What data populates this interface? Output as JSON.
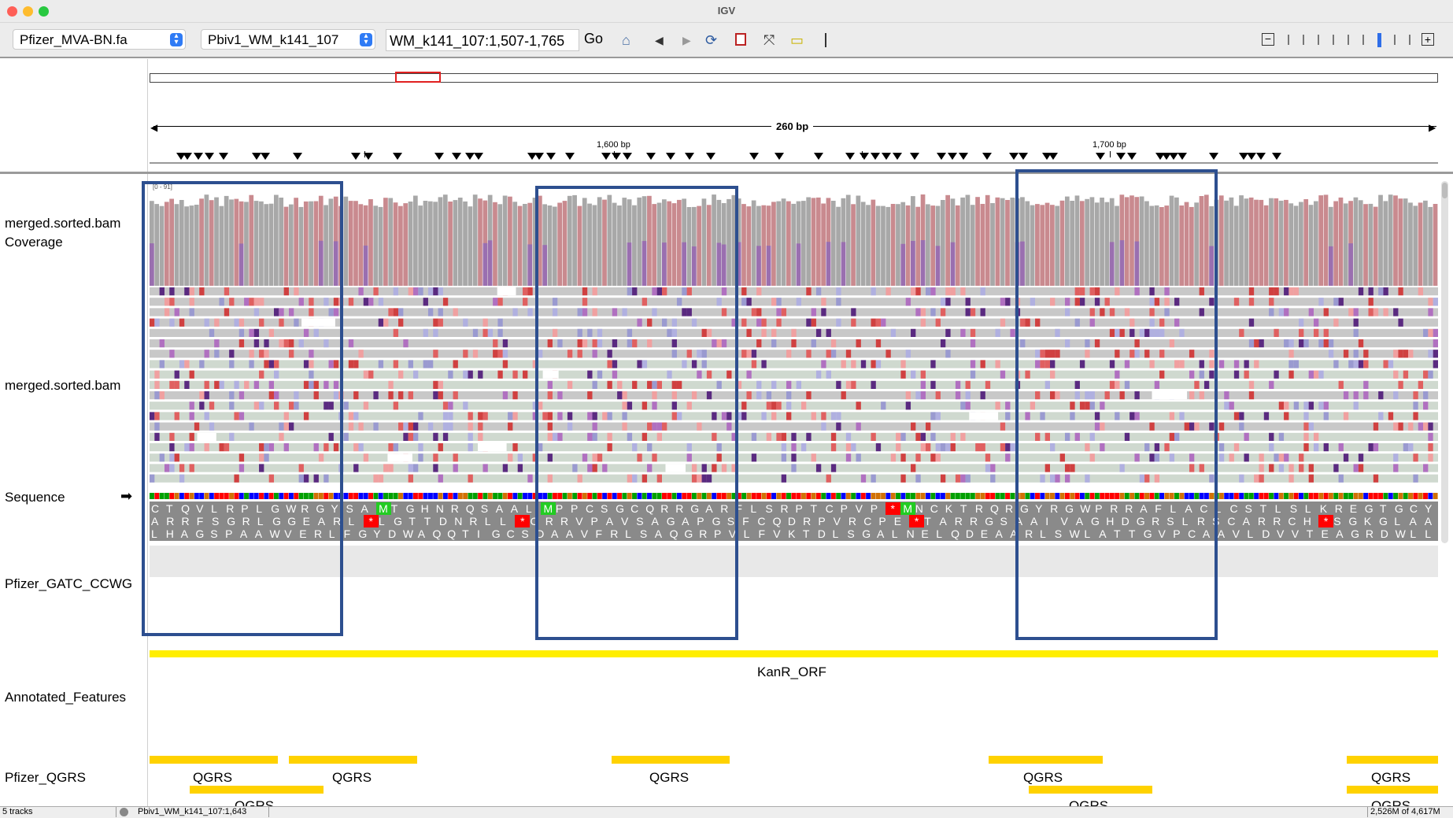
{
  "window": {
    "title": "IGV"
  },
  "toolbar": {
    "genome": "Pfizer_MVA-BN.fa",
    "chromosome": "Pbiv1_WM_k141_107",
    "locus": "WM_k141_107:1,507-1,765",
    "go_label": "Go"
  },
  "ruler": {
    "span_label": "260 bp",
    "pos1": "1,600 bp",
    "pos2": "1,700 bp"
  },
  "tracks": {
    "coverage_label": "merged.sorted.bam Coverage",
    "coverage_range": "[0 - 91]",
    "reads_label": "merged.sorted.bam",
    "sequence_label": "Sequence",
    "sequence_arrow": "➡",
    "gatc_label": "Pfizer_GATC_CCWG",
    "annotated_label": "Annotated_Features",
    "qgrs_label": "Pfizer_QGRS"
  },
  "translation": {
    "frame1": "CTQVLRPLGWRGYSAMTGHNRQSAALMPPCSGCQRRGARFLSRPTCPVP*MNCKTRQRGYRGWPRRAFLACLCSTLSLKREGTGCY",
    "frame2": "ARRFSGRLGGEARL*LGTTDNRLL*CRRVPAVSAGAPGSFCQDRPVRCPE*TARRGSAAIVAGHDGRSLRSCARRCH*SGKGLAA",
    "frame3": "LHAGSPAAWVERLFGYDWAQQTIGCSDAAVFRLSAQGRPVLFVKTDLSGALNELQDEAARLSWLATTGVPCAAVLDVVTEAGRDWLL"
  },
  "features": {
    "kanr_label": "KanR_ORF",
    "qgrs": [
      "QGRS",
      "QGRS",
      "QGRS",
      "QGRS",
      "QGRS"
    ],
    "qgrs_partial": [
      "QGRS",
      "QGRS",
      "QGRS"
    ]
  },
  "status": {
    "tracks": "5 tracks",
    "position": "Pbiv1_WM_k141_107:1,643",
    "memory": "2,526M of 4,617M"
  },
  "colors": {
    "highlight_box": "#2d4f8f",
    "feature": "#ffee00",
    "qgrs": "#ffd200",
    "stop_codon": "#ff0000",
    "start_codon": "#22cc22"
  }
}
